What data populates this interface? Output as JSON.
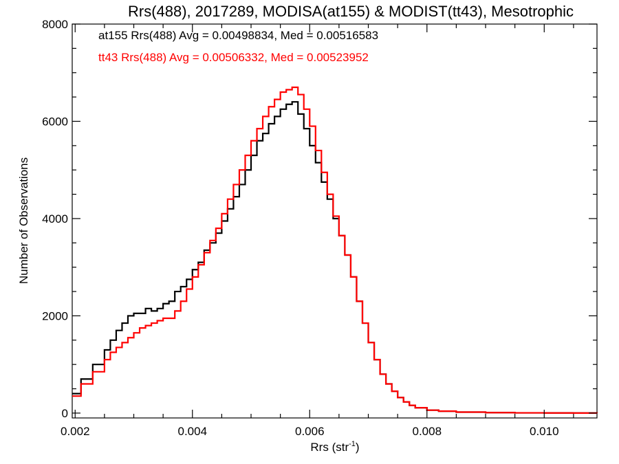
{
  "chart_data": {
    "type": "line",
    "style": "step-histogram",
    "title": "Rrs(488), 2017289, MODISA(at155) & MODIST(tt43), Mesotrophic",
    "xlabel": "Rrs (str",
    "xlabel_sup": "-1",
    "xlabel_close": ")",
    "ylabel": "Number of Observations",
    "xlim": [
      0.00195,
      0.0109
    ],
    "ylim": [
      -100,
      8000
    ],
    "x_ticks": [
      0.002,
      0.004,
      0.006,
      0.008,
      0.01
    ],
    "x_tick_labels": [
      "0.002",
      "0.004",
      "0.006",
      "0.008",
      "0.010"
    ],
    "y_ticks": [
      0,
      2000,
      4000,
      6000,
      8000
    ],
    "y_tick_labels": [
      "0",
      "2000",
      "4000",
      "6000",
      "8000"
    ],
    "grid": false,
    "legend_position": "top-left",
    "series": [
      {
        "name": "at155",
        "legend_text": "at155 Rrs(488) Avg = 0.00498834, Med = 0.00516583",
        "color": "#000000",
        "x": [
          0.00195,
          0.0021,
          0.0023,
          0.0025,
          0.0026,
          0.0027,
          0.0028,
          0.0029,
          0.003,
          0.0031,
          0.0032,
          0.0033,
          0.0034,
          0.0035,
          0.0036,
          0.0037,
          0.0038,
          0.0039,
          0.004,
          0.0041,
          0.0042,
          0.0043,
          0.0044,
          0.0045,
          0.0046,
          0.0047,
          0.0048,
          0.0049,
          0.005,
          0.0051,
          0.0052,
          0.0053,
          0.0054,
          0.0055,
          0.0056,
          0.0057,
          0.0058,
          0.0059,
          0.006,
          0.0061,
          0.0062,
          0.0063,
          0.0064,
          0.0065,
          0.0066,
          0.0067,
          0.0068,
          0.0069,
          0.007,
          0.0071,
          0.0072,
          0.0073,
          0.0074,
          0.0075,
          0.0076,
          0.0077,
          0.0078,
          0.008,
          0.0082,
          0.0085,
          0.009,
          0.0095,
          0.01,
          0.0105,
          0.0109
        ],
        "y": [
          400,
          700,
          1000,
          1300,
          1500,
          1700,
          1850,
          2000,
          2050,
          2050,
          2150,
          2100,
          2150,
          2250,
          2300,
          2500,
          2600,
          2750,
          2950,
          3100,
          3350,
          3500,
          3700,
          3950,
          4200,
          4450,
          4700,
          5000,
          5300,
          5600,
          5750,
          5950,
          6100,
          6250,
          6350,
          6400,
          6150,
          5850,
          5500,
          5150,
          4750,
          4400,
          4000,
          3650,
          3250,
          2800,
          2300,
          1850,
          1450,
          1100,
          800,
          600,
          450,
          320,
          230,
          160,
          110,
          60,
          40,
          20,
          10,
          5,
          2,
          1,
          0
        ]
      },
      {
        "name": "tt43",
        "legend_text": "tt43 Rrs(488) Avg = 0.00506332, Med = 0.00523952",
        "color": "#ff0000",
        "x": [
          0.00195,
          0.0021,
          0.0023,
          0.0025,
          0.0026,
          0.0027,
          0.0028,
          0.0029,
          0.003,
          0.0031,
          0.0032,
          0.0033,
          0.0034,
          0.0035,
          0.0036,
          0.0037,
          0.0038,
          0.0039,
          0.004,
          0.0041,
          0.0042,
          0.0043,
          0.0044,
          0.0045,
          0.0046,
          0.0047,
          0.0048,
          0.0049,
          0.005,
          0.0051,
          0.0052,
          0.0053,
          0.0054,
          0.0055,
          0.0056,
          0.0057,
          0.0058,
          0.0059,
          0.006,
          0.0061,
          0.0062,
          0.0063,
          0.0064,
          0.0065,
          0.0066,
          0.0067,
          0.0068,
          0.0069,
          0.007,
          0.0071,
          0.0072,
          0.0073,
          0.0074,
          0.0075,
          0.0076,
          0.0077,
          0.0078,
          0.008,
          0.0082,
          0.0085,
          0.009,
          0.0095,
          0.01,
          0.0105,
          0.0109
        ],
        "y": [
          350,
          600,
          850,
          1100,
          1250,
          1350,
          1450,
          1550,
          1650,
          1750,
          1800,
          1850,
          1900,
          1950,
          1950,
          2100,
          2300,
          2550,
          2800,
          3050,
          3300,
          3550,
          3800,
          4100,
          4400,
          4700,
          5000,
          5300,
          5600,
          5850,
          6100,
          6300,
          6450,
          6600,
          6650,
          6700,
          6550,
          6250,
          5900,
          5400,
          4950,
          4500,
          4050,
          3650,
          3250,
          2800,
          2300,
          1850,
          1450,
          1100,
          800,
          600,
          450,
          320,
          230,
          160,
          110,
          60,
          40,
          20,
          10,
          5,
          2,
          1,
          0
        ]
      }
    ]
  }
}
